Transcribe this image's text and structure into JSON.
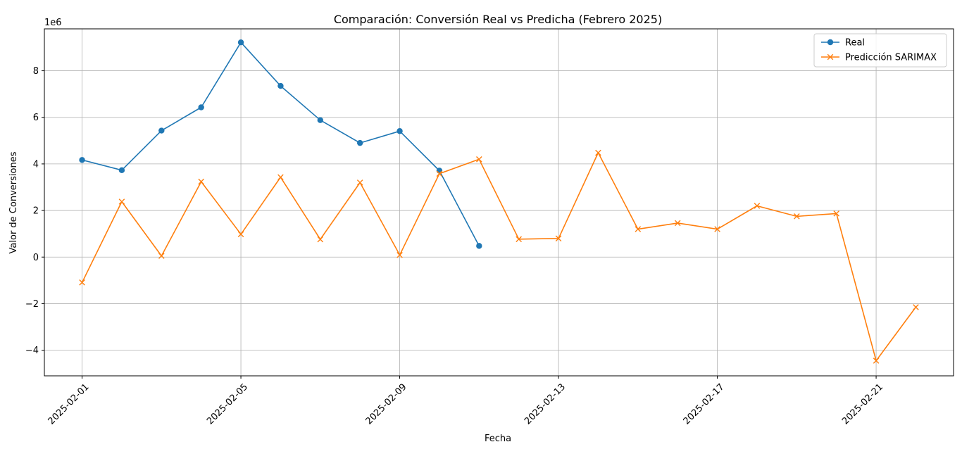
{
  "chart_data": {
    "type": "line",
    "title": "Comparación: Conversión Real vs Predicha (Febrero 2025)",
    "xlabel": "Fecha",
    "ylabel": "Valor de Conversiones",
    "y_offset_label": "1e6",
    "xlim": [
      "2025-01-31",
      "2025-02-23"
    ],
    "ylim": [
      -5.1,
      9.8
    ],
    "y_scale_factor": 1000000,
    "grid": true,
    "legend_position": "top-right",
    "x_ticks": [
      "2025-02-01",
      "2025-02-05",
      "2025-02-09",
      "2025-02-13",
      "2025-02-17",
      "2025-02-21"
    ],
    "y_ticks": [
      -4,
      -2,
      0,
      2,
      4,
      6,
      8
    ],
    "series": [
      {
        "name": "Real",
        "color": "#1f77b4",
        "marker": "circle",
        "x": [
          "2025-02-01",
          "2025-02-02",
          "2025-02-03",
          "2025-02-04",
          "2025-02-05",
          "2025-02-06",
          "2025-02-07",
          "2025-02-08",
          "2025-02-09",
          "2025-02-10",
          "2025-02-11"
        ],
        "values": [
          4.17,
          3.73,
          5.43,
          6.43,
          9.22,
          7.35,
          5.88,
          4.9,
          5.41,
          3.71,
          0.48
        ]
      },
      {
        "name": "Predicción SARIMAX",
        "color": "#ff7f0e",
        "marker": "x",
        "x": [
          "2025-02-01",
          "2025-02-02",
          "2025-02-03",
          "2025-02-04",
          "2025-02-05",
          "2025-02-06",
          "2025-02-07",
          "2025-02-08",
          "2025-02-09",
          "2025-02-10",
          "2025-02-11",
          "2025-02-12",
          "2025-02-13",
          "2025-02-14",
          "2025-02-15",
          "2025-02-16",
          "2025-02-17",
          "2025-02-18",
          "2025-02-19",
          "2025-02-20",
          "2025-02-21",
          "2025-02-22"
        ],
        "values": [
          -1.09,
          2.38,
          0.05,
          3.24,
          0.98,
          3.43,
          0.76,
          3.2,
          0.09,
          3.58,
          4.2,
          0.77,
          0.8,
          4.48,
          1.2,
          1.46,
          1.2,
          2.2,
          1.75,
          1.87,
          -4.45,
          -2.15
        ]
      }
    ]
  }
}
